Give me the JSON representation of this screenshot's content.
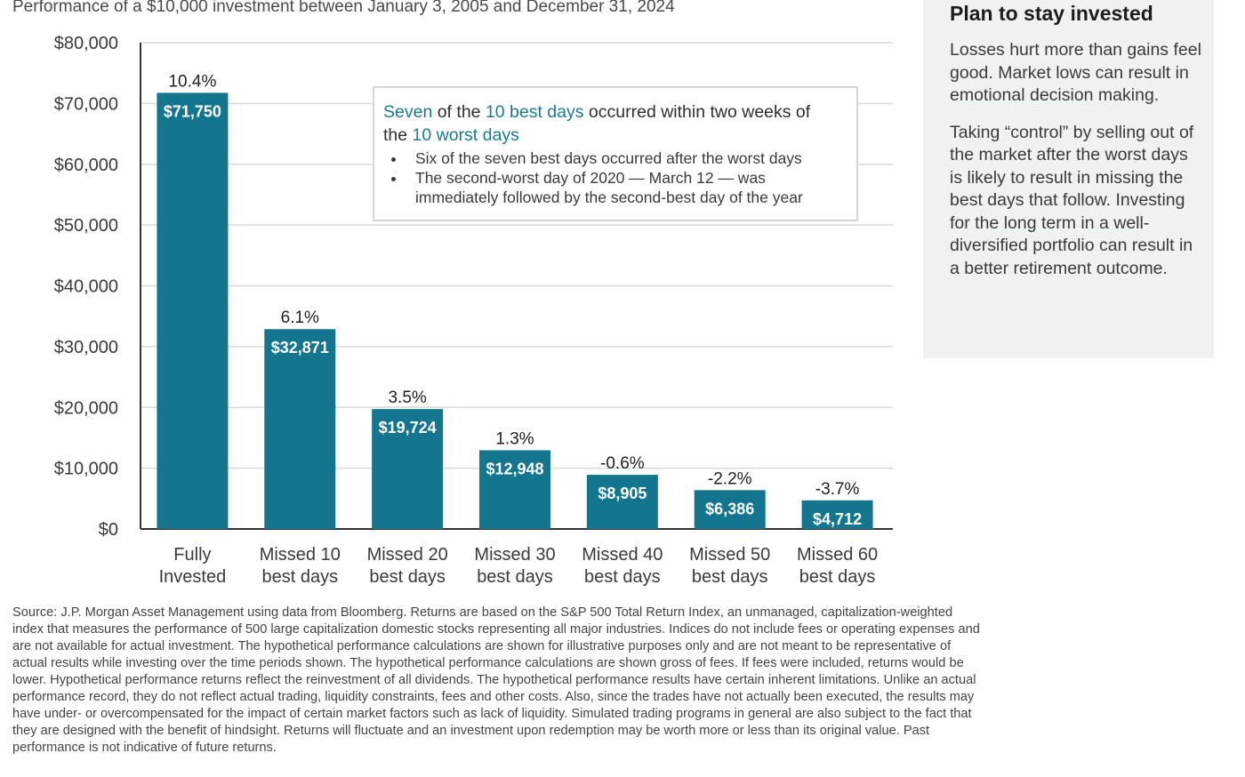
{
  "subtitle": "Performance of a $10,000 investment between January 3, 2005 and December 31, 2024",
  "chart_data": {
    "type": "bar",
    "title": "",
    "xlabel": "",
    "ylabel": "",
    "categories": [
      [
        "Fully",
        "Invested"
      ],
      [
        "Missed 10",
        "best days"
      ],
      [
        "Missed 20",
        "best days"
      ],
      [
        "Missed 30",
        "best days"
      ],
      [
        "Missed 40",
        "best days"
      ],
      [
        "Missed 50",
        "best days"
      ],
      [
        "Missed 60",
        "best days"
      ]
    ],
    "values": [
      71750,
      32871,
      19724,
      12948,
      8905,
      6386,
      4712
    ],
    "value_labels": [
      "$71,750",
      "$32,871",
      "$19,724",
      "$12,948",
      "$8,905",
      "$6,386",
      "$4,712"
    ],
    "annual_returns": [
      "10.4%",
      "6.1%",
      "3.5%",
      "1.3%",
      "-0.6%",
      "-2.2%",
      "-3.7%"
    ],
    "ylim": [
      0,
      80000
    ],
    "yticks": [
      0,
      10000,
      20000,
      30000,
      40000,
      50000,
      60000,
      70000,
      80000
    ],
    "ytick_labels": [
      "$0",
      "$10,000",
      "$20,000",
      "$30,000",
      "$40,000",
      "$50,000",
      "$60,000",
      "$70,000",
      "$80,000"
    ],
    "grid": true,
    "bar_color": "#14758e",
    "grid_color": "#d9d9d9"
  },
  "callout": {
    "line1": {
      "seven": "Seven",
      "of_the": " of the ",
      "best": "10 best days",
      "rest": " occurred within two weeks of"
    },
    "line2": {
      "the": "the ",
      "worst": "10 worst days"
    },
    "bullets": [
      "Six of the seven best days occurred after the worst days",
      "The second-worst day of 2020 — March 12 — was immediately followed by the second-best day of the year"
    ],
    "highlight_color": "#1a7a92"
  },
  "sidebar": {
    "title": "Plan to stay invested",
    "paragraphs": [
      "Losses hurt more than gains feel good. Market lows can result in emotional decision making.",
      "Taking “control” by selling out of the market after the worst days is likely to result in missing the best days that follow. Investing for the long term in a well-diversified portfolio can result in a better retirement outcome."
    ]
  },
  "source": "Source: J.P. Morgan Asset Management using data from Bloomberg. Returns are based on the S&P 500 Total Return Index, an unmanaged, capitalization-weighted index that measures the performance of 500 large capitalization domestic stocks representing all major industries. Indices do not include fees or operating expenses and are not available for actual investment. The hypothetical performance calculations are shown for illustrative purposes only and are not meant to be representative of actual results while investing over the time periods shown. The hypothetical performance calculations are shown gross of fees. If fees were included, returns would be lower. Hypothetical performance returns reflect the reinvestment of all dividends. The hypothetical performance results have certain inherent limitations. Unlike an actual performance record, they do not reflect actual trading, liquidity constraints, fees and other costs. Also, since the trades have not actually been executed, the results may have under- or overcompensated for the impact of certain market factors such as lack of liquidity. Simulated trading programs in general are also subject to the fact that they are designed with the benefit of hindsight. Returns will fluctuate and an investment upon redemption may be worth more or less than its original value. Past performance is not indicative of future returns."
}
